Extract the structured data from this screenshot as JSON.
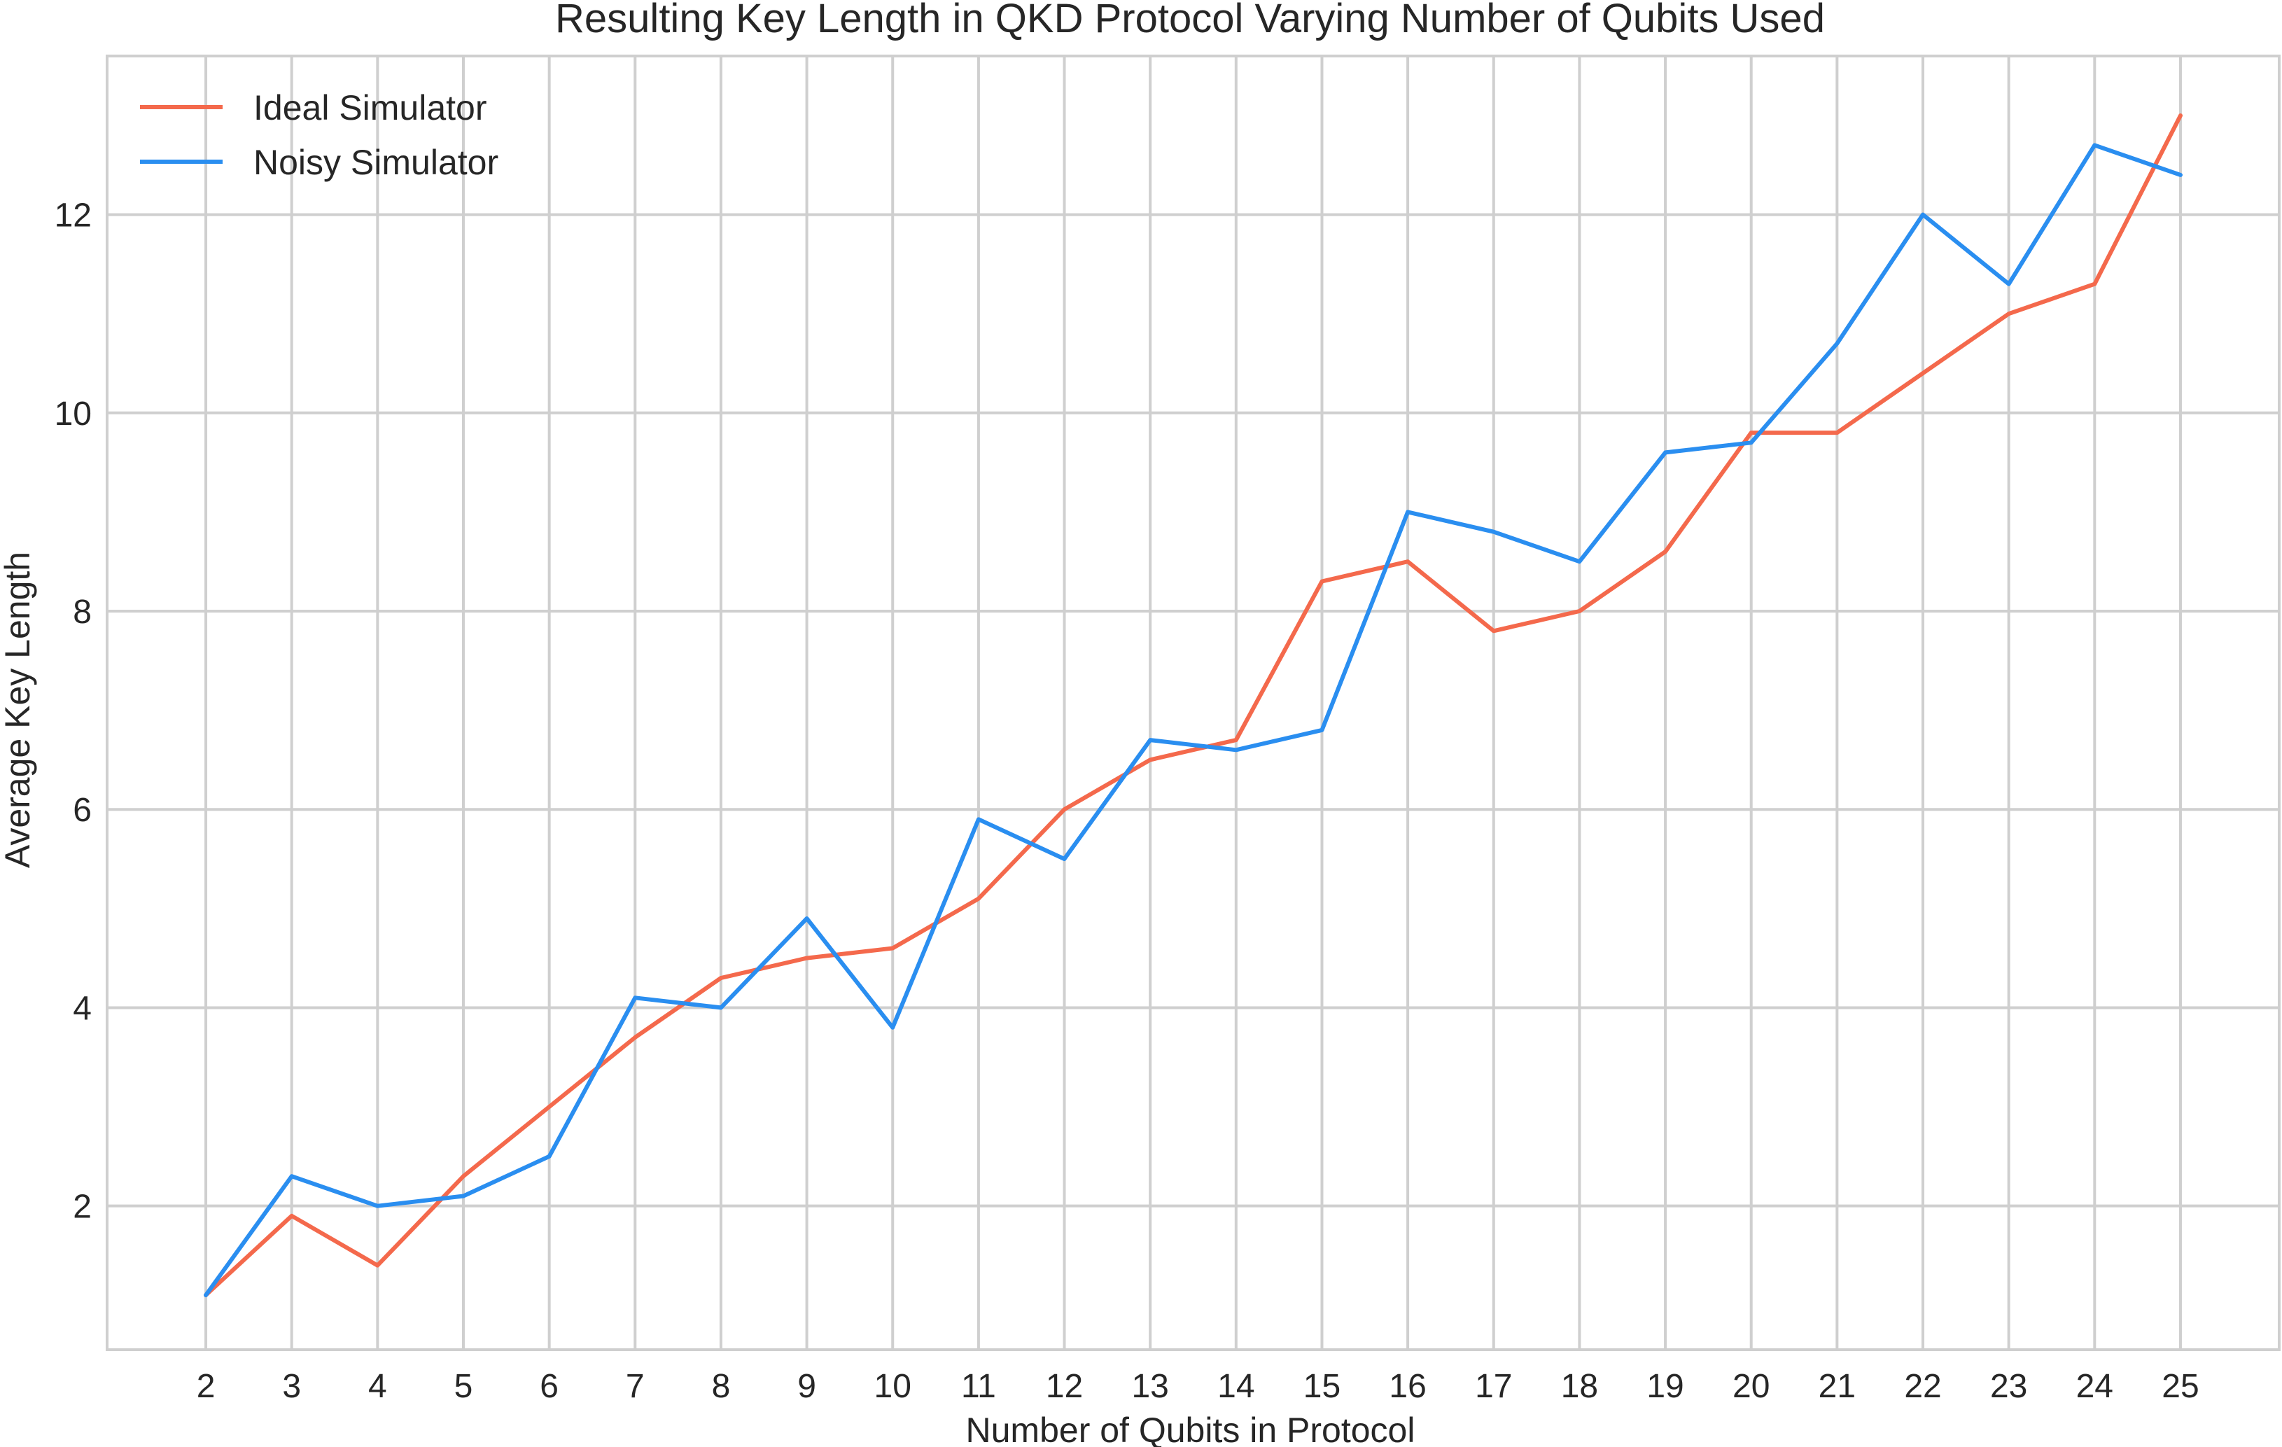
{
  "colors": {
    "ideal": "#f4694c",
    "noisy": "#2a8ef0"
  },
  "chart_data": {
    "type": "line",
    "title": "Resulting Key Length in QKD Protocol Varying Number of Qubits Used",
    "xlabel": "Number of Qubits in Protocol",
    "ylabel": "Average Key Length",
    "x": [
      2,
      3,
      4,
      5,
      6,
      7,
      8,
      9,
      10,
      11,
      12,
      13,
      14,
      15,
      16,
      17,
      18,
      19,
      20,
      21,
      22,
      23,
      24,
      25
    ],
    "xlim": [
      0.85,
      26.15
    ],
    "ylim": [
      0.55,
      13.6
    ],
    "yticks": [
      2,
      4,
      6,
      8,
      10,
      12
    ],
    "grid": true,
    "legend_position": "top-left",
    "series": [
      {
        "name": "Ideal Simulator",
        "color": "#f4694c",
        "values": [
          1.1,
          1.9,
          1.4,
          2.3,
          3.0,
          3.7,
          4.3,
          4.5,
          4.6,
          5.1,
          6.0,
          6.5,
          6.7,
          8.3,
          8.5,
          7.8,
          8.0,
          8.6,
          9.8,
          9.8,
          10.4,
          11.0,
          11.3,
          13.0
        ]
      },
      {
        "name": "Noisy Simulator",
        "color": "#2a8ef0",
        "values": [
          1.1,
          2.3,
          2.0,
          2.1,
          2.5,
          4.1,
          4.0,
          4.9,
          3.8,
          5.9,
          5.5,
          6.7,
          6.6,
          6.8,
          9.0,
          8.8,
          8.5,
          9.6,
          9.7,
          10.7,
          12.0,
          11.3,
          12.7,
          12.4
        ]
      }
    ]
  }
}
